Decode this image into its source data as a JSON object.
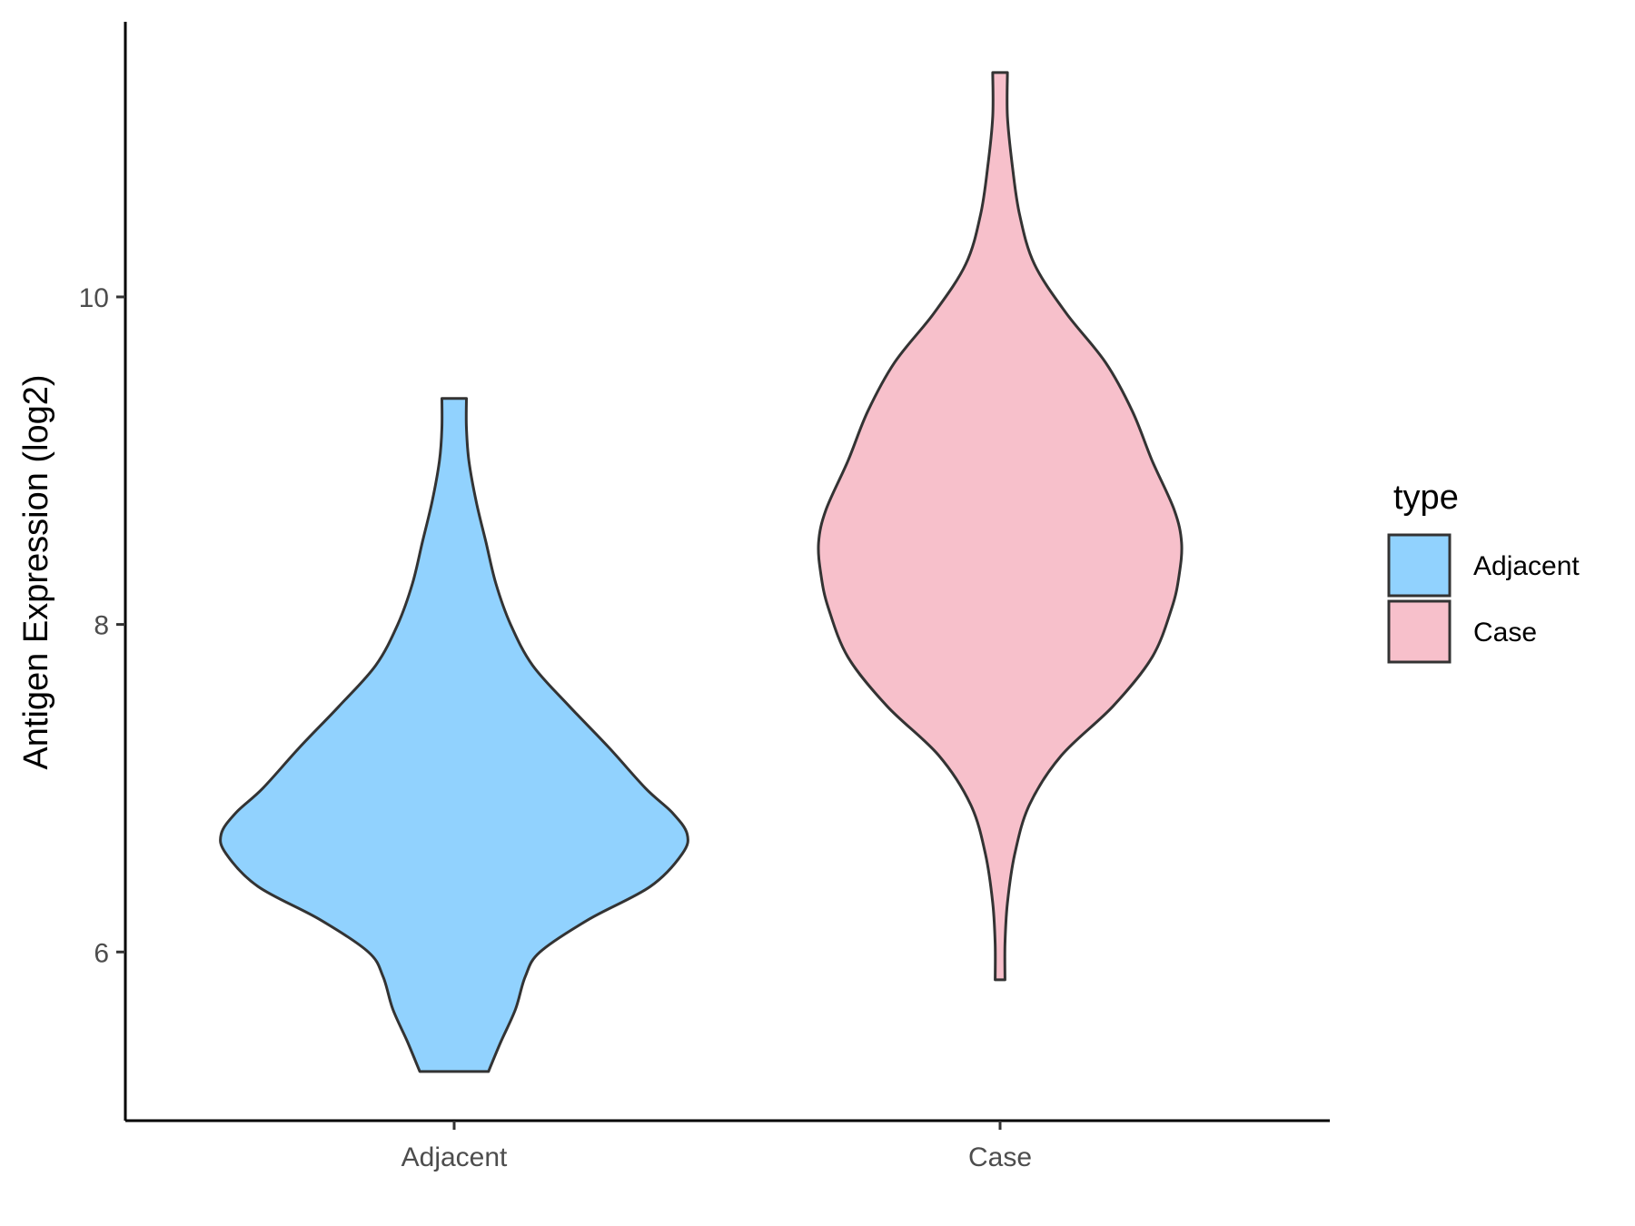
{
  "chart_data": {
    "type": "violin",
    "title": "",
    "xlabel": "",
    "ylabel": "Antigen Expression (log2)",
    "categories": [
      "Adjacent",
      "Case"
    ],
    "y_ticks": [
      6,
      8,
      10
    ],
    "ylim": [
      4.97,
      11.68
    ],
    "grid": false,
    "legend": {
      "title": "type",
      "position": "right",
      "entries": [
        {
          "label": "Adjacent",
          "color": "#91d2fe"
        },
        {
          "label": "Case",
          "color": "#f7c0cb"
        }
      ]
    },
    "series": [
      {
        "name": "Adjacent",
        "color": "#91d2fe",
        "y_min": 5.27,
        "y_max": 9.38,
        "profile": [
          [
            5.27,
            0.14
          ],
          [
            5.45,
            0.19
          ],
          [
            5.65,
            0.25
          ],
          [
            5.85,
            0.29
          ],
          [
            6.0,
            0.35
          ],
          [
            6.2,
            0.55
          ],
          [
            6.4,
            0.8
          ],
          [
            6.6,
            0.93
          ],
          [
            6.72,
            0.95
          ],
          [
            6.85,
            0.89
          ],
          [
            7.0,
            0.78
          ],
          [
            7.25,
            0.63
          ],
          [
            7.5,
            0.47
          ],
          [
            7.75,
            0.32
          ],
          [
            8.0,
            0.23
          ],
          [
            8.25,
            0.17
          ],
          [
            8.5,
            0.13
          ],
          [
            8.75,
            0.09
          ],
          [
            9.0,
            0.06
          ],
          [
            9.2,
            0.05
          ],
          [
            9.38,
            0.05
          ]
        ]
      },
      {
        "name": "Case",
        "color": "#f7c0cb",
        "y_min": 5.83,
        "y_max": 11.37,
        "profile": [
          [
            5.83,
            0.02
          ],
          [
            6.05,
            0.02
          ],
          [
            6.3,
            0.03
          ],
          [
            6.6,
            0.06
          ],
          [
            6.9,
            0.12
          ],
          [
            7.2,
            0.25
          ],
          [
            7.5,
            0.46
          ],
          [
            7.8,
            0.62
          ],
          [
            8.1,
            0.7
          ],
          [
            8.3,
            0.73
          ],
          [
            8.5,
            0.74
          ],
          [
            8.7,
            0.71
          ],
          [
            9.0,
            0.62
          ],
          [
            9.3,
            0.54
          ],
          [
            9.6,
            0.43
          ],
          [
            9.9,
            0.27
          ],
          [
            10.2,
            0.14
          ],
          [
            10.5,
            0.08
          ],
          [
            10.8,
            0.05
          ],
          [
            11.1,
            0.03
          ],
          [
            11.37,
            0.03
          ]
        ]
      }
    ]
  }
}
